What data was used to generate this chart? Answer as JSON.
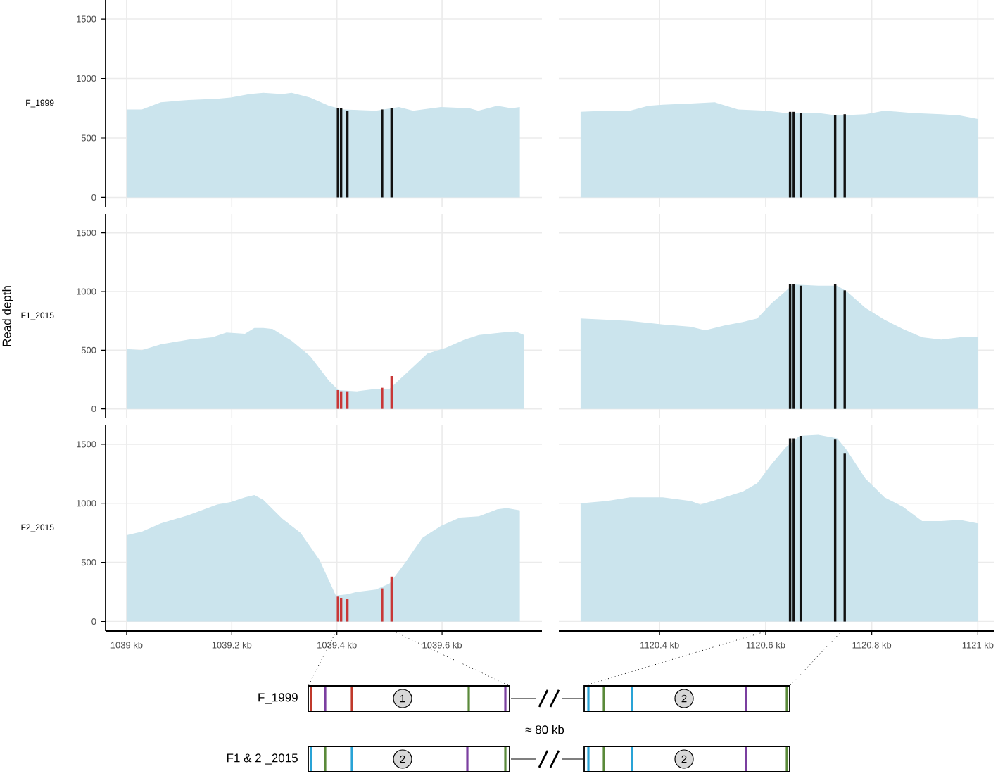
{
  "chart_data": [
    {
      "type": "area",
      "ylabel": "F_1999",
      "xlim": [
        1038.96,
        1039.79
      ],
      "ylim": [
        -80,
        1660
      ],
      "xticks": [
        {
          "value": 1039,
          "label": null
        },
        {
          "value": 1039.2,
          "label": null
        },
        {
          "value": 1039.4,
          "label": null
        },
        {
          "value": 1039.6,
          "label": null
        }
      ],
      "yticks": [
        0,
        500,
        1000,
        1500
      ],
      "grid": true,
      "tick_labels": "y",
      "series": [
        {
          "type": "area",
          "color": "#cbe4ed",
          "x": [
            1039.0,
            1039.029,
            1039.065,
            1039.118,
            1039.172,
            1039.198,
            1039.234,
            1039.26,
            1039.296,
            1039.314,
            1039.349,
            1039.385,
            1039.412,
            1039.474,
            1039.518,
            1039.545,
            1039.598,
            1039.652,
            1039.669,
            1039.705,
            1039.732,
            1039.748
          ],
          "values": [
            740,
            740,
            800,
            820,
            830,
            840,
            870,
            880,
            870,
            880,
            840,
            770,
            740,
            730,
            760,
            730,
            760,
            750,
            730,
            770,
            750,
            760
          ]
        },
        {
          "type": "bar",
          "color": "#111111",
          "x": [
            1039.402,
            1039.408,
            1039.42,
            1039.486,
            1039.504
          ],
          "values": [
            750,
            750,
            730,
            740,
            750
          ]
        }
      ]
    },
    {
      "type": "area",
      "xlim": [
        1120.21,
        1121.03
      ],
      "ylim": [
        -80,
        1660
      ],
      "xticks": [
        {
          "value": 1120.4,
          "label": null
        },
        {
          "value": 1120.6,
          "label": null
        },
        {
          "value": 1120.8,
          "label": null
        },
        {
          "value": 1121,
          "label": null
        }
      ],
      "yticks": [
        0,
        500,
        1000,
        1500
      ],
      "grid": true,
      "tick_labels": false,
      "series": [
        {
          "type": "area",
          "color": "#cbe4ed",
          "x": [
            1120.251,
            1120.3,
            1120.344,
            1120.379,
            1120.406,
            1120.459,
            1120.504,
            1120.548,
            1120.602,
            1120.637,
            1120.699,
            1120.735,
            1120.788,
            1120.824,
            1120.877,
            1120.931,
            1120.966,
            1121.0
          ],
          "values": [
            720,
            730,
            730,
            770,
            780,
            790,
            800,
            740,
            730,
            710,
            710,
            690,
            700,
            730,
            710,
            700,
            690,
            660
          ]
        },
        {
          "type": "bar",
          "color": "#111111",
          "x": [
            1120.646,
            1120.653,
            1120.666,
            1120.731,
            1120.749
          ],
          "values": [
            720,
            720,
            710,
            690,
            700
          ]
        }
      ]
    },
    {
      "type": "area",
      "ylabel": "F1_2015",
      "annotations": [
        "Read depth"
      ],
      "xlim": [
        1038.96,
        1039.79
      ],
      "ylim": [
        -80,
        1660
      ],
      "xticks": [
        {
          "value": 1039,
          "label": null
        },
        {
          "value": 1039.2,
          "label": null
        },
        {
          "value": 1039.4,
          "label": null
        },
        {
          "value": 1039.6,
          "label": null
        }
      ],
      "yticks": [
        0,
        500,
        1000,
        1500
      ],
      "grid": true,
      "tick_labels": "y",
      "series": [
        {
          "type": "area",
          "color": "#cbe4ed",
          "x": [
            1039.0,
            1039.029,
            1039.065,
            1039.118,
            1039.163,
            1039.19,
            1039.225,
            1039.243,
            1039.26,
            1039.278,
            1039.314,
            1039.349,
            1039.385,
            1039.403,
            1039.438,
            1039.474,
            1039.5,
            1039.536,
            1039.572,
            1039.607,
            1039.643,
            1039.67,
            1039.714,
            1039.74,
            1039.756
          ],
          "values": [
            510,
            500,
            550,
            590,
            610,
            650,
            640,
            690,
            690,
            680,
            580,
            450,
            240,
            160,
            150,
            170,
            170,
            320,
            470,
            520,
            590,
            630,
            650,
            660,
            630
          ]
        },
        {
          "type": "bar",
          "color": "#c83737",
          "x": [
            1039.402,
            1039.408,
            1039.42,
            1039.486,
            1039.504
          ],
          "values": [
            160,
            150,
            150,
            180,
            280
          ]
        }
      ]
    },
    {
      "type": "area",
      "xlim": [
        1120.21,
        1121.03
      ],
      "ylim": [
        -80,
        1660
      ],
      "xticks": [
        {
          "value": 1120.4,
          "label": null
        },
        {
          "value": 1120.6,
          "label": null
        },
        {
          "value": 1120.8,
          "label": null
        },
        {
          "value": 1121,
          "label": null
        }
      ],
      "yticks": [
        0,
        500,
        1000,
        1500
      ],
      "grid": true,
      "tick_labels": false,
      "series": [
        {
          "type": "area",
          "color": "#cbe4ed",
          "x": [
            1120.251,
            1120.3,
            1120.344,
            1120.406,
            1120.459,
            1120.486,
            1120.522,
            1120.557,
            1120.584,
            1120.611,
            1120.637,
            1120.651,
            1120.699,
            1120.735,
            1120.753,
            1120.788,
            1120.824,
            1120.859,
            1120.895,
            1120.931,
            1120.966,
            1121.0
          ],
          "values": [
            770,
            760,
            750,
            720,
            700,
            670,
            710,
            740,
            770,
            900,
            1000,
            1060,
            1050,
            1050,
            1000,
            860,
            760,
            680,
            610,
            590,
            610,
            610
          ]
        },
        {
          "type": "bar",
          "color": "#111111",
          "x": [
            1120.646,
            1120.653,
            1120.666,
            1120.731,
            1120.749
          ],
          "values": [
            1060,
            1060,
            1050,
            1060,
            1010
          ]
        }
      ]
    },
    {
      "type": "area",
      "ylabel": "F2_2015",
      "xlim": [
        1038.96,
        1039.79
      ],
      "ylim": [
        -80,
        1660
      ],
      "xticks": [
        {
          "value": 1039,
          "label": "1039 kb"
        },
        {
          "value": 1039.2,
          "label": "1039.2 kb"
        },
        {
          "value": 1039.4,
          "label": "1039.4 kb"
        },
        {
          "value": 1039.6,
          "label": "1039.6 kb"
        }
      ],
      "yticks": [
        0,
        500,
        1000,
        1500
      ],
      "grid": true,
      "series": [
        {
          "type": "area",
          "color": "#cbe4ed",
          "x": [
            1039.0,
            1039.029,
            1039.065,
            1039.118,
            1039.172,
            1039.198,
            1039.225,
            1039.243,
            1039.26,
            1039.296,
            1039.331,
            1039.367,
            1039.398,
            1039.42,
            1039.438,
            1039.474,
            1039.5,
            1039.527,
            1039.563,
            1039.598,
            1039.634,
            1039.67,
            1039.705,
            1039.723,
            1039.748
          ],
          "values": [
            730,
            760,
            830,
            900,
            990,
            1010,
            1050,
            1070,
            1030,
            870,
            750,
            520,
            220,
            230,
            250,
            270,
            320,
            480,
            710,
            810,
            880,
            890,
            950,
            960,
            940
          ]
        },
        {
          "type": "bar",
          "color": "#c83737",
          "x": [
            1039.402,
            1039.408,
            1039.42,
            1039.486,
            1039.504
          ],
          "values": [
            210,
            200,
            190,
            280,
            380
          ]
        }
      ]
    },
    {
      "type": "area",
      "xlim": [
        1120.21,
        1121.03
      ],
      "ylim": [
        -80,
        1660
      ],
      "xticks": [
        {
          "value": 1120.4,
          "label": "1120.4 kb"
        },
        {
          "value": 1120.6,
          "label": "1120.6 kb"
        },
        {
          "value": 1120.8,
          "label": "1120.8 kb"
        },
        {
          "value": 1121,
          "label": "1121 kb"
        }
      ],
      "yticks": [
        0,
        500,
        1000,
        1500
      ],
      "grid": true,
      "tick_labels": "x",
      "series": [
        {
          "type": "area",
          "color": "#cbe4ed",
          "x": [
            1120.251,
            1120.3,
            1120.344,
            1120.406,
            1120.459,
            1120.477,
            1120.522,
            1120.557,
            1120.584,
            1120.611,
            1120.637,
            1120.664,
            1120.699,
            1120.735,
            1120.753,
            1120.788,
            1120.824,
            1120.859,
            1120.895,
            1120.931,
            1120.966,
            1121.0
          ],
          "values": [
            1000,
            1020,
            1050,
            1050,
            1020,
            990,
            1050,
            1100,
            1170,
            1330,
            1470,
            1570,
            1580,
            1550,
            1450,
            1210,
            1050,
            970,
            850,
            850,
            860,
            830
          ]
        },
        {
          "type": "bar",
          "color": "#111111",
          "x": [
            1120.646,
            1120.653,
            1120.666,
            1120.731,
            1120.749
          ],
          "values": [
            1550,
            1550,
            1570,
            1540,
            1420
          ]
        }
      ]
    },
    {
      "type": "other",
      "annotations": [
        "F_1999",
        "F1 & 2 _2015",
        "≈ 80 kb",
        "1",
        "2",
        "2",
        "2"
      ]
    }
  ]
}
